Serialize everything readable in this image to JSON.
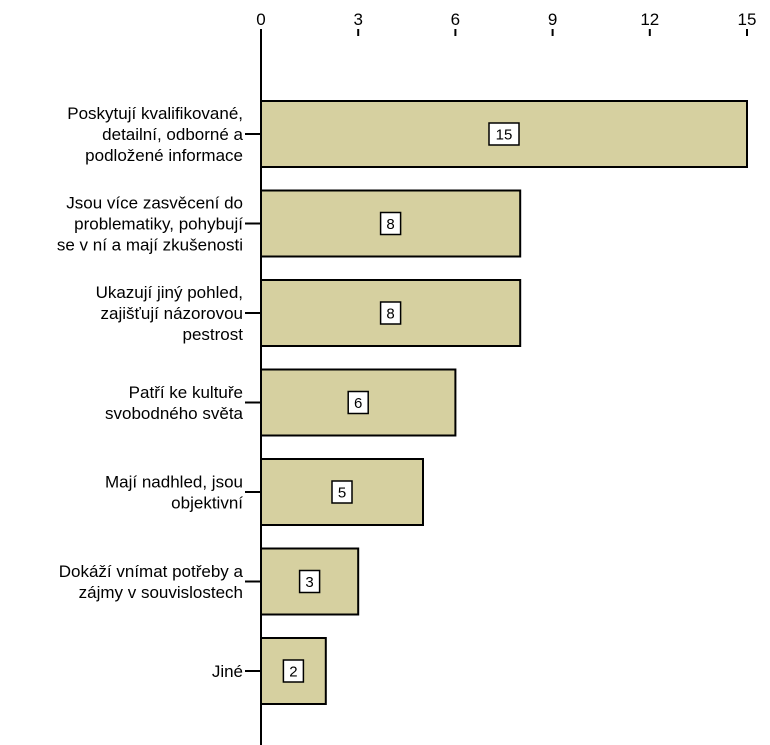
{
  "chart_data": {
    "type": "bar",
    "orientation": "horizontal",
    "title": "",
    "xlabel": "",
    "ylabel": "",
    "categories": [
      "Poskytují kvalifikované, detailní, odborné a podložené informace",
      "Jsou více zasvěcení do problematiky, pohybují se v ní a mají zkušenosti",
      "Ukazují jiný pohled, zajišťují názorovou pestrost",
      "Patří ke kultuře svobodného světa",
      "Mají nadhled, jsou objektivní",
      "Dokáží vnímat potřeby a zájmy v souvislostech",
      "Jiné"
    ],
    "category_label_lines": [
      [
        "Poskytují kvalifikované,",
        "detailní, odborné a",
        "podložené informace"
      ],
      [
        "Jsou více zasvěcení do",
        "problematiky, pohybují",
        "se v ní a mají zkušenosti"
      ],
      [
        "Ukazují jiný pohled,",
        "zajišťují názorovou",
        "pestrost"
      ],
      [
        "Patří ke kultuře",
        "svobodného světa"
      ],
      [
        "Mají nadhled, jsou",
        "objektivní"
      ],
      [
        "Dokáží vnímat potřeby a",
        "zájmy v souvislostech"
      ],
      [
        "Jiné"
      ]
    ],
    "values": [
      15,
      8,
      8,
      6,
      5,
      3,
      2
    ],
    "data_labels": [
      "15",
      "8",
      "8",
      "6",
      "5",
      "3",
      "2"
    ],
    "xlim": [
      0,
      15
    ],
    "x_ticks": [
      0,
      3,
      6,
      9,
      12,
      15
    ],
    "x_axis_position": "top",
    "grid": false,
    "legend": "none",
    "bar_color": "#d6d0a0"
  }
}
